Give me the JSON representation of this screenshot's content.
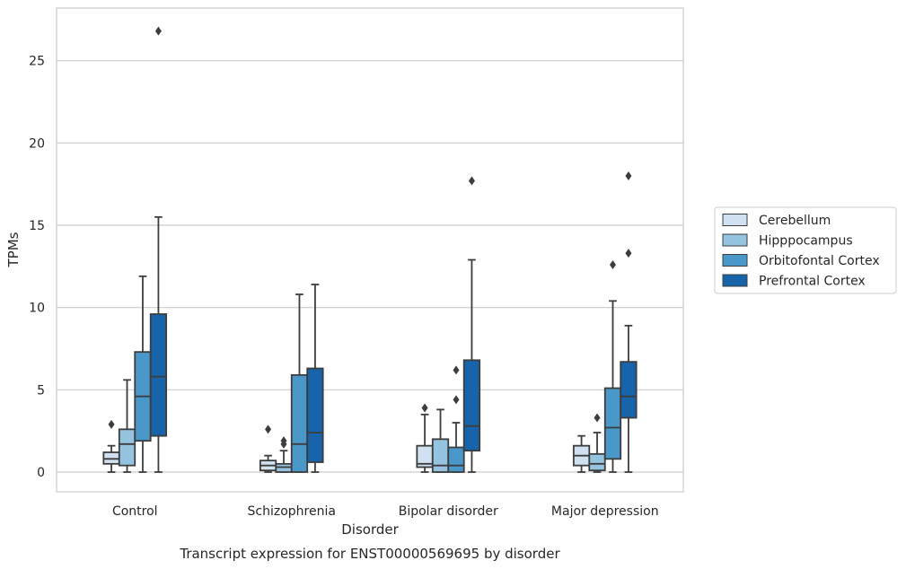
{
  "caption": "Transcript expression for ENST00000569695 by disorder",
  "chart_data": {
    "type": "box",
    "title": "",
    "xlabel": "Disorder",
    "ylabel": "TPMs",
    "ylim": [
      -1.2,
      28.2
    ],
    "yticks": [
      0,
      5,
      10,
      15,
      20,
      25
    ],
    "grid": "horizontal",
    "legend_position": "outside-right",
    "categories": [
      "Control",
      "Schizophrenia",
      "Bipolar disorder",
      "Major depression"
    ],
    "series": [
      {
        "name": "Cerebellum",
        "color": "#d0e1f2",
        "boxes": [
          {
            "whislo": 0.0,
            "q1": 0.5,
            "med": 0.8,
            "q3": 1.2,
            "whishi": 1.6,
            "fliers": [
              2.9
            ]
          },
          {
            "whislo": 0.0,
            "q1": 0.1,
            "med": 0.4,
            "q3": 0.7,
            "whishi": 1.0,
            "fliers": [
              2.6
            ]
          },
          {
            "whislo": 0.0,
            "q1": 0.3,
            "med": 0.5,
            "q3": 1.6,
            "whishi": 3.5,
            "fliers": [
              3.9
            ]
          },
          {
            "whislo": 0.0,
            "q1": 0.4,
            "med": 1.0,
            "q3": 1.6,
            "whishi": 2.2,
            "fliers": []
          }
        ]
      },
      {
        "name": "Hipppocampus",
        "color": "#94c4df",
        "boxes": [
          {
            "whislo": 0.0,
            "q1": 0.4,
            "med": 1.7,
            "q3": 2.6,
            "whishi": 5.6,
            "fliers": []
          },
          {
            "whislo": 0.0,
            "q1": 0.0,
            "med": 0.3,
            "q3": 0.5,
            "whishi": 1.3,
            "fliers": [
              1.7,
              1.9
            ]
          },
          {
            "whislo": 0.0,
            "q1": 0.0,
            "med": 0.4,
            "q3": 2.0,
            "whishi": 3.8,
            "fliers": []
          },
          {
            "whislo": 0.0,
            "q1": 0.1,
            "med": 0.5,
            "q3": 1.1,
            "whishi": 2.4,
            "fliers": [
              3.3
            ]
          }
        ]
      },
      {
        "name": "Orbitofontal Cortex",
        "color": "#4a98c9",
        "boxes": [
          {
            "whislo": 0.0,
            "q1": 1.9,
            "med": 4.6,
            "q3": 7.3,
            "whishi": 11.9,
            "fliers": []
          },
          {
            "whislo": 0.0,
            "q1": 0.0,
            "med": 1.7,
            "q3": 5.9,
            "whishi": 10.8,
            "fliers": []
          },
          {
            "whislo": 0.0,
            "q1": 0.0,
            "med": 0.4,
            "q3": 1.5,
            "whishi": 3.0,
            "fliers": [
              4.4,
              6.2
            ]
          },
          {
            "whislo": 0.0,
            "q1": 0.8,
            "med": 2.7,
            "q3": 5.1,
            "whishi": 10.4,
            "fliers": [
              12.6
            ]
          }
        ]
      },
      {
        "name": "Prefrontal Cortex",
        "color": "#1764ab",
        "boxes": [
          {
            "whislo": 0.0,
            "q1": 2.2,
            "med": 5.8,
            "q3": 9.6,
            "whishi": 15.5,
            "fliers": [
              26.8
            ]
          },
          {
            "whislo": 0.0,
            "q1": 0.6,
            "med": 2.4,
            "q3": 6.3,
            "whishi": 11.4,
            "fliers": []
          },
          {
            "whislo": 0.0,
            "q1": 1.3,
            "med": 2.8,
            "q3": 6.8,
            "whishi": 12.9,
            "fliers": [
              17.7
            ]
          },
          {
            "whislo": 0.0,
            "q1": 3.3,
            "med": 4.6,
            "q3": 6.7,
            "whishi": 8.9,
            "fliers": [
              13.3,
              18.0
            ]
          }
        ]
      }
    ]
  }
}
